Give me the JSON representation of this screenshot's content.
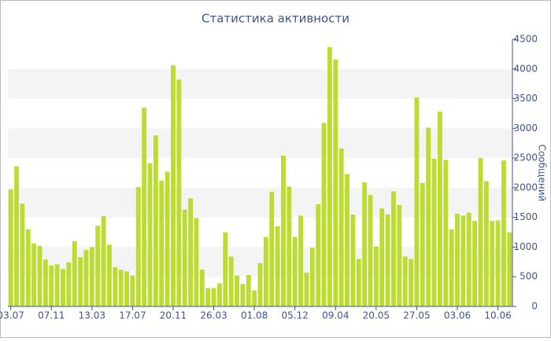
{
  "chart_data": {
    "type": "bar",
    "title": "Статистика активности",
    "y_axis_label": "Сообщений",
    "categories": [
      "03.07",
      null,
      null,
      null,
      null,
      null,
      null,
      "07.11",
      null,
      null,
      null,
      null,
      null,
      null,
      "13.03",
      null,
      null,
      null,
      null,
      null,
      null,
      "17.07",
      null,
      null,
      null,
      null,
      null,
      null,
      "20.11",
      null,
      null,
      null,
      null,
      null,
      null,
      "26.03",
      null,
      null,
      null,
      null,
      null,
      null,
      "01.08",
      null,
      null,
      null,
      null,
      null,
      null,
      "05.12",
      null,
      null,
      null,
      null,
      null,
      null,
      "09.04",
      null,
      null,
      null,
      null,
      null,
      null,
      "20.05",
      null,
      null,
      null,
      null,
      null,
      null,
      "27.05",
      null,
      null,
      null,
      null,
      null,
      null,
      "03.06",
      null,
      null,
      null,
      null,
      null,
      null,
      "10.06",
      null,
      null
    ],
    "values": [
      1970,
      2360,
      1730,
      1300,
      1060,
      1020,
      790,
      690,
      710,
      630,
      740,
      1100,
      830,
      950,
      1000,
      1360,
      1520,
      1040,
      660,
      620,
      590,
      520,
      2010,
      3350,
      2410,
      2880,
      2120,
      2270,
      4060,
      3820,
      1630,
      1820,
      1490,
      620,
      310,
      310,
      390,
      1250,
      840,
      520,
      380,
      530,
      270,
      730,
      1170,
      1930,
      1350,
      2540,
      2020,
      1170,
      1530,
      570,
      990,
      1720,
      3090,
      4370,
      4160,
      2660,
      2230,
      1550,
      800,
      2090,
      1880,
      1010,
      1650,
      1550,
      1940,
      1710,
      840,
      800,
      3520,
      2080,
      3010,
      2490,
      3280,
      2470,
      1300,
      1560,
      1530,
      1580,
      1440,
      2500,
      2110,
      1440,
      1450,
      2460,
      1250
    ],
    "color": "#bddc32",
    "ylim": [
      0,
      4500
    ],
    "yticks": [
      0,
      500,
      1000,
      1500,
      2000,
      2500,
      3000,
      3500,
      4000,
      4500
    ],
    "grid": true
  }
}
